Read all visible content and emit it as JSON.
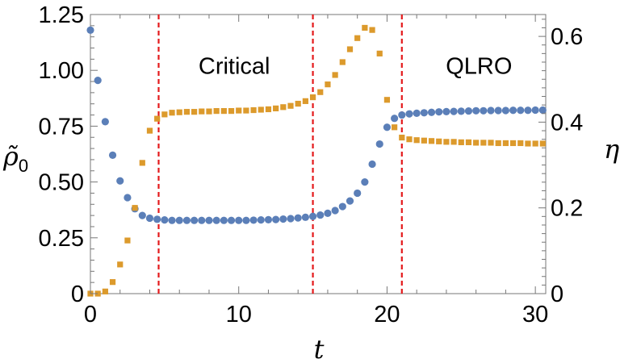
{
  "chart_data": {
    "type": "scatter",
    "xlabel": "t",
    "ylabel_left": "ρ̃",
    "ylabel_left_subscript": "0",
    "ylabel_right": "η",
    "xlim": [
      0,
      30.7
    ],
    "ylim_left": [
      0,
      1.25
    ],
    "ylim_right": [
      0,
      0.651
    ],
    "x_ticks": [
      0,
      10,
      20,
      30
    ],
    "x_tick_labels": [
      "0",
      "10",
      "20",
      "30"
    ],
    "y_left_ticks": [
      0,
      0.25,
      0.5,
      0.75,
      1.0,
      1.25
    ],
    "y_left_tick_labels": [
      "0",
      "0.25",
      "0.50",
      "0.75",
      "1.00",
      "1.25"
    ],
    "y_right_ticks": [
      0,
      0.2,
      0.4,
      0.6
    ],
    "y_right_tick_labels": [
      "0",
      "0.2",
      "0.4",
      "0.6"
    ],
    "vlines": [
      4.6,
      15.0,
      21.0
    ],
    "vline_color": "#e41a1c",
    "annotations": [
      {
        "text": "Critical",
        "x": 9.7,
        "y": 1.02
      },
      {
        "text": "QLRO",
        "x": 26.2,
        "y": 1.02
      }
    ],
    "series": [
      {
        "name": "ρ̃0",
        "axis": "left",
        "marker": "circle",
        "color": "#5b7fb8",
        "x": [
          0,
          0.5,
          1.0,
          1.5,
          2.0,
          2.5,
          3.0,
          3.5,
          4.0,
          4.5,
          5.0,
          5.5,
          6.0,
          6.5,
          7.0,
          7.5,
          8.0,
          8.5,
          9.0,
          9.5,
          10.0,
          10.5,
          11.0,
          11.5,
          12.0,
          12.5,
          13.0,
          13.5,
          14.0,
          14.5,
          15.0,
          15.5,
          16.0,
          16.5,
          17.0,
          17.5,
          18.0,
          18.5,
          19.0,
          19.5,
          20.0,
          20.5,
          21.0,
          21.5,
          22.0,
          22.5,
          23.0,
          23.5,
          24.0,
          24.5,
          25.0,
          25.5,
          26.0,
          26.5,
          27.0,
          27.5,
          28.0,
          28.5,
          29.0,
          29.5,
          30.0,
          30.5
        ],
        "y": [
          1.18,
          0.955,
          0.77,
          0.62,
          0.505,
          0.43,
          0.38,
          0.35,
          0.338,
          0.333,
          0.33,
          0.328,
          0.328,
          0.328,
          0.328,
          0.328,
          0.328,
          0.328,
          0.328,
          0.328,
          0.328,
          0.328,
          0.329,
          0.33,
          0.331,
          0.332,
          0.334,
          0.336,
          0.339,
          0.342,
          0.346,
          0.352,
          0.36,
          0.372,
          0.39,
          0.415,
          0.45,
          0.5,
          0.58,
          0.67,
          0.745,
          0.785,
          0.8,
          0.805,
          0.808,
          0.81,
          0.812,
          0.814,
          0.815,
          0.816,
          0.817,
          0.818,
          0.819,
          0.819,
          0.82,
          0.82,
          0.82,
          0.821,
          0.821,
          0.821,
          0.822,
          0.822
        ]
      },
      {
        "name": "η",
        "axis": "right",
        "marker": "square",
        "color": "#dc9a2c",
        "x": [
          0,
          0.5,
          1.0,
          1.5,
          2.0,
          2.5,
          3.0,
          3.5,
          4.0,
          4.5,
          5.0,
          5.5,
          6.0,
          6.5,
          7.0,
          7.5,
          8.0,
          8.5,
          9.0,
          9.5,
          10.0,
          10.5,
          11.0,
          11.5,
          12.0,
          12.5,
          13.0,
          13.5,
          14.0,
          14.5,
          15.0,
          15.5,
          16.0,
          16.5,
          17.0,
          17.5,
          18.0,
          18.5,
          19.0,
          19.5,
          20.0,
          20.5,
          21.0,
          21.5,
          22.0,
          22.5,
          23.0,
          23.5,
          24.0,
          24.5,
          25.0,
          25.5,
          26.0,
          26.5,
          27.0,
          27.5,
          28.0,
          28.5,
          29.0,
          29.5,
          30.0,
          30.5
        ],
        "y": [
          0.0,
          0.0,
          0.005,
          0.027,
          0.068,
          0.124,
          0.2,
          0.305,
          0.38,
          0.408,
          0.418,
          0.422,
          0.423,
          0.424,
          0.424,
          0.425,
          0.425,
          0.426,
          0.426,
          0.426,
          0.427,
          0.427,
          0.428,
          0.429,
          0.43,
          0.432,
          0.435,
          0.438,
          0.443,
          0.449,
          0.458,
          0.47,
          0.488,
          0.51,
          0.54,
          0.57,
          0.596,
          0.62,
          0.615,
          0.56,
          0.452,
          0.388,
          0.364,
          0.36,
          0.358,
          0.357,
          0.356,
          0.355,
          0.354,
          0.354,
          0.353,
          0.353,
          0.352,
          0.352,
          0.352,
          0.351,
          0.351,
          0.351,
          0.351,
          0.35,
          0.35,
          0.35
        ]
      }
    ]
  }
}
